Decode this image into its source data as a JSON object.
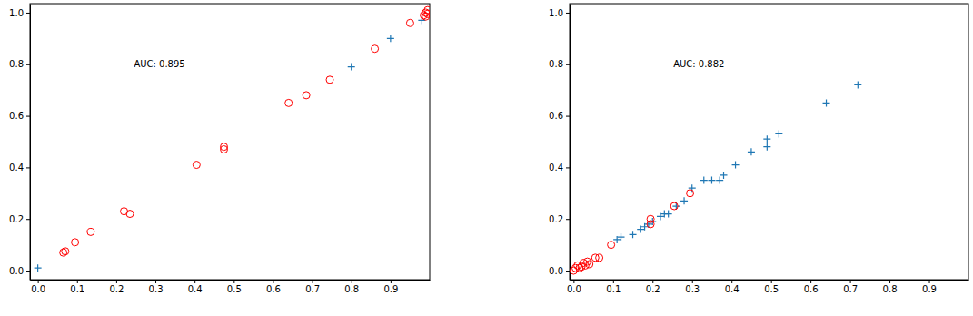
{
  "chart_data": [
    {
      "type": "scatter",
      "annotation": "AUC: 0.895",
      "xlim": [
        -0.02,
        1.0
      ],
      "ylim": [
        -0.035,
        1.035
      ],
      "xticks": [
        {
          "value": 0,
          "label": "0.0"
        },
        0.1,
        0.2,
        0.3,
        0.4,
        0.5,
        0.6,
        0.7,
        0.8,
        0.9
      ],
      "yticks": [
        {
          "value": 0,
          "label": "0.0"
        },
        0.2,
        0.4,
        0.6,
        0.8,
        {
          "value": 1,
          "label": "1.0"
        }
      ],
      "series": [
        {
          "color": "#1f77b4",
          "marker": "plus",
          "x": [
            0.0,
            0.8,
            0.9,
            0.98
          ],
          "values": [
            0.01,
            0.79,
            0.9,
            0.97
          ]
        },
        {
          "color": "#ff0000",
          "marker": "circle",
          "x": [
            0.065,
            0.07,
            0.095,
            0.135,
            0.22,
            0.235,
            0.405,
            0.475,
            0.475,
            0.64,
            0.685,
            0.745,
            0.86,
            0.95,
            0.985,
            0.99,
            0.995,
            0.99,
            0.995
          ],
          "values": [
            0.07,
            0.075,
            0.11,
            0.15,
            0.23,
            0.22,
            0.41,
            0.47,
            0.48,
            0.65,
            0.68,
            0.74,
            0.86,
            0.96,
            0.99,
            1.0,
            1.01,
            0.985,
            0.995
          ]
        }
      ]
    },
    {
      "type": "scatter",
      "annotation": "AUC: 0.882",
      "xlim": [
        -0.01,
        1.0
      ],
      "ylim": [
        -0.035,
        1.035
      ],
      "xticks": [
        {
          "value": 0,
          "label": "0.0"
        },
        0.1,
        0.2,
        0.3,
        0.4,
        0.5,
        0.6,
        0.7,
        0.8,
        0.9
      ],
      "yticks": [
        {
          "value": 0,
          "label": "0.0"
        },
        0.2,
        0.4,
        0.6,
        0.8,
        {
          "value": 1,
          "label": "1.0"
        }
      ],
      "series": [
        {
          "color": "#1f77b4",
          "marker": "plus",
          "x": [
            0.11,
            0.12,
            0.15,
            0.17,
            0.18,
            0.19,
            0.2,
            0.22,
            0.23,
            0.24,
            0.26,
            0.28,
            0.3,
            0.33,
            0.35,
            0.37,
            0.38,
            0.41,
            0.45,
            0.49,
            0.49,
            0.52,
            0.64,
            0.72
          ],
          "values": [
            0.12,
            0.13,
            0.14,
            0.16,
            0.17,
            0.18,
            0.19,
            0.21,
            0.22,
            0.22,
            0.25,
            0.27,
            0.32,
            0.35,
            0.35,
            0.35,
            0.37,
            0.41,
            0.46,
            0.48,
            0.51,
            0.53,
            0.65,
            0.72
          ]
        },
        {
          "color": "#ff0000",
          "marker": "circle",
          "x": [
            0.0,
            0.005,
            0.01,
            0.015,
            0.02,
            0.025,
            0.03,
            0.035,
            0.04,
            0.055,
            0.065,
            0.095,
            0.195,
            0.195,
            0.255,
            0.295
          ],
          "values": [
            0.0,
            0.01,
            0.02,
            0.01,
            0.015,
            0.03,
            0.02,
            0.035,
            0.025,
            0.05,
            0.05,
            0.1,
            0.18,
            0.2,
            0.25,
            0.3
          ]
        }
      ]
    }
  ]
}
